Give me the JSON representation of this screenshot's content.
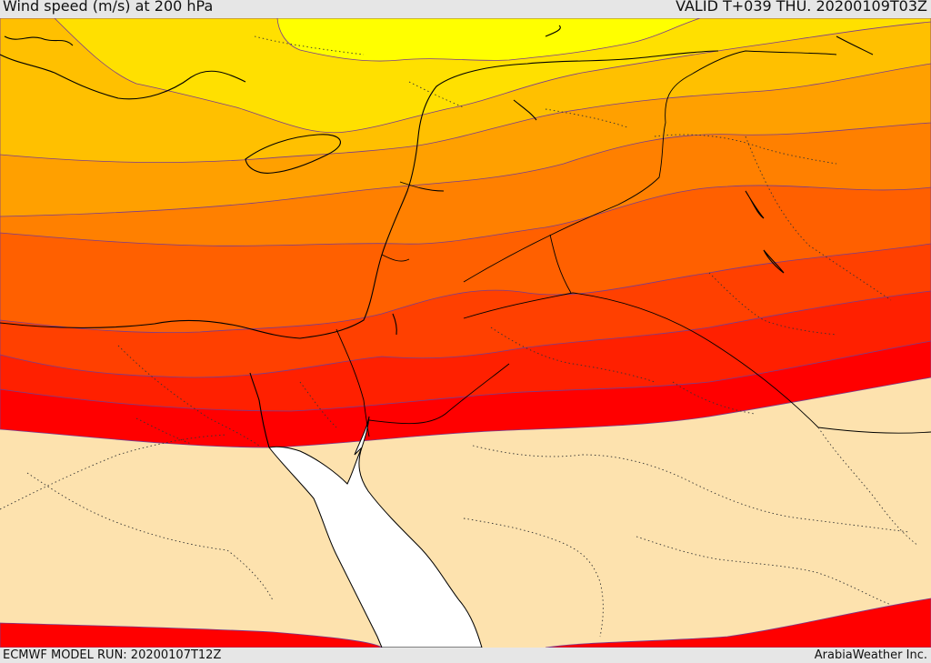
{
  "header": {
    "title": "Wind speed (m/s) at 200 hPa",
    "valid": "VALID T+039 THU. 20200109T03Z"
  },
  "footer": {
    "model_run": "ECMWF MODEL RUN: 20200107T12Z",
    "credit": "ArabiaWeather Inc."
  },
  "palette": {
    "band_1": "#ffff00",
    "band_2": "#ffe000",
    "band_3": "#ffc000",
    "band_4": "#ffa000",
    "band_5": "#ff8000",
    "band_6": "#ff6000",
    "band_7": "#ff4000",
    "band_8": "#ff2000",
    "band_9": "#ff0000",
    "calm": "#fde2ae",
    "sea": "#ffffff"
  }
}
